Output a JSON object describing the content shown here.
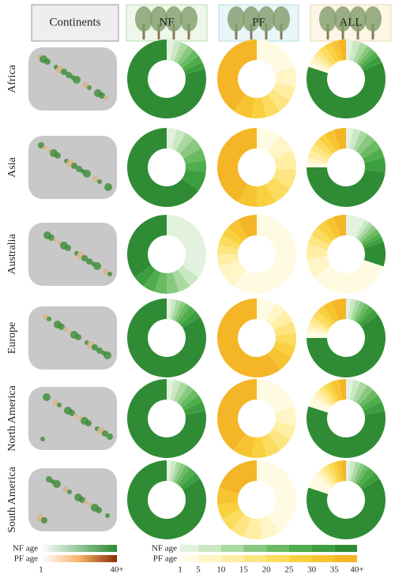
{
  "column_headers": [
    "Continents",
    "NF",
    "PF",
    "ALL"
  ],
  "row_labels": [
    "Africa",
    "Asia",
    "Australia",
    "Europe",
    "North America",
    "South America"
  ],
  "legend": {
    "gradient": {
      "labels": [
        "NF age",
        "PF age"
      ],
      "ticks": [
        1,
        "40+"
      ]
    },
    "steps": {
      "labels": [
        "NF age",
        "PF age"
      ],
      "ticks": [
        1,
        5,
        10,
        15,
        20,
        25,
        30,
        35,
        {
          "value": 40,
          "label": "40+"
        }
      ]
    },
    "nf_colors": [
      "#e3f2de",
      "#cbe8c5",
      "#a9d9a1",
      "#88c97f",
      "#69ba61",
      "#4fad4b",
      "#3d9e3f",
      "#2f8c35"
    ],
    "pf_colors": [
      "#fffbe3",
      "#fff5c6",
      "#ffeea4",
      "#fde681",
      "#fcdc5e",
      "#f9d040",
      "#f7c431",
      "#f4b526"
    ]
  },
  "chart_data": [
    {
      "type": "donut",
      "series": [
        {
          "palette": "nf",
          "values": [
            3,
            3,
            3,
            3,
            3,
            3,
            3,
            79
          ]
        }
      ]
    },
    {
      "type": "donut",
      "series": [
        {
          "palette": "pf",
          "values": [
            20,
            8,
            6,
            6,
            6,
            6,
            8,
            40
          ]
        }
      ]
    },
    {
      "type": "donut",
      "series": [
        {
          "palette": "nf",
          "values": [
            3,
            3,
            3,
            2,
            2,
            2,
            3,
            62
          ]
        },
        {
          "palette": "pf",
          "values": [
            2,
            2,
            2,
            2,
            3,
            3,
            3,
            3
          ]
        }
      ]
    },
    {
      "type": "donut",
      "series": [
        {
          "palette": "nf",
          "values": [
            4,
            4,
            4,
            5,
            5,
            5,
            8,
            65
          ]
        }
      ]
    },
    {
      "type": "donut",
      "series": [
        {
          "palette": "pf",
          "values": [
            10,
            8,
            8,
            8,
            8,
            8,
            8,
            42
          ]
        }
      ]
    },
    {
      "type": "donut",
      "series": [
        {
          "palette": "nf",
          "values": [
            3,
            3,
            3,
            4,
            4,
            4,
            6,
            48
          ]
        },
        {
          "palette": "pf",
          "values": [
            2,
            2,
            3,
            3,
            3,
            3,
            4,
            5
          ]
        }
      ]
    },
    {
      "type": "donut",
      "series": [
        {
          "palette": "nf",
          "values": [
            35,
            5,
            5,
            5,
            5,
            5,
            5,
            35
          ]
        }
      ]
    },
    {
      "type": "donut",
      "series": [
        {
          "palette": "pf",
          "values": [
            60,
            10,
            5,
            4,
            4,
            4,
            5,
            8
          ]
        }
      ]
    },
    {
      "type": "donut",
      "series": [
        {
          "palette": "nf",
          "values": [
            8,
            2,
            2,
            2,
            2,
            2,
            2,
            10
          ]
        },
        {
          "palette": "pf",
          "values": [
            35,
            8,
            6,
            4,
            4,
            4,
            4,
            5
          ]
        }
      ]
    },
    {
      "type": "donut",
      "series": [
        {
          "palette": "nf",
          "values": [
            2,
            2,
            2,
            2,
            2,
            3,
            3,
            84
          ]
        }
      ]
    },
    {
      "type": "donut",
      "series": [
        {
          "palette": "pf",
          "values": [
            8,
            5,
            5,
            5,
            5,
            5,
            7,
            60
          ]
        }
      ]
    },
    {
      "type": "donut",
      "series": [
        {
          "palette": "nf",
          "values": [
            2,
            2,
            2,
            2,
            2,
            2,
            3,
            60
          ]
        },
        {
          "palette": "pf",
          "values": [
            3,
            2,
            2,
            2,
            3,
            3,
            4,
            6
          ]
        }
      ]
    },
    {
      "type": "donut",
      "series": [
        {
          "palette": "nf",
          "values": [
            3,
            3,
            3,
            3,
            3,
            3,
            4,
            78
          ]
        }
      ]
    },
    {
      "type": "donut",
      "series": [
        {
          "palette": "pf",
          "values": [
            20,
            8,
            6,
            6,
            6,
            6,
            8,
            40
          ]
        }
      ]
    },
    {
      "type": "donut",
      "series": [
        {
          "palette": "nf",
          "values": [
            3,
            3,
            3,
            3,
            3,
            3,
            4,
            58
          ]
        },
        {
          "palette": "pf",
          "values": [
            4,
            2,
            2,
            2,
            2,
            2,
            3,
            3
          ]
        }
      ]
    },
    {
      "type": "donut",
      "series": [
        {
          "palette": "nf",
          "values": [
            2,
            2,
            2,
            2,
            2,
            3,
            3,
            84
          ]
        }
      ]
    },
    {
      "type": "donut",
      "series": [
        {
          "palette": "pf",
          "values": [
            40,
            8,
            7,
            6,
            6,
            6,
            7,
            20
          ]
        }
      ]
    },
    {
      "type": "donut",
      "series": [
        {
          "palette": "nf",
          "values": [
            2,
            2,
            2,
            2,
            2,
            3,
            3,
            64
          ]
        },
        {
          "palette": "pf",
          "values": [
            6,
            2,
            2,
            2,
            2,
            2,
            2,
            2
          ]
        }
      ]
    }
  ]
}
